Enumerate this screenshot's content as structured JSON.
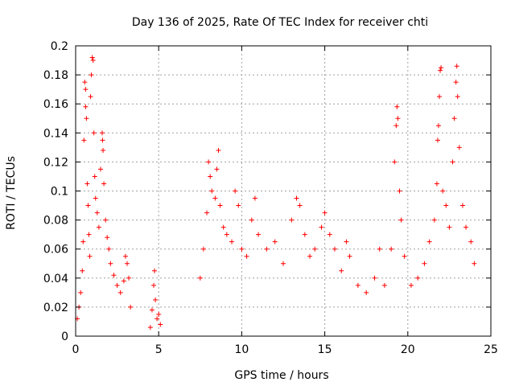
{
  "chart_data": {
    "type": "scatter",
    "title": "Day 136 of 2025, Rate Of TEC Index for receiver chti",
    "xlabel": "GPS time / hours",
    "ylabel": "ROTI / TECUs",
    "xlim": [
      0,
      25
    ],
    "ylim": [
      0,
      0.2
    ],
    "x_ticks": [
      "0",
      "5",
      "10",
      "15",
      "20",
      "25"
    ],
    "y_ticks": [
      "0",
      "0.02",
      "0.04",
      "0.06",
      "0.08",
      "0.1",
      "0.12",
      "0.14",
      "0.16",
      "0.18",
      "0.2"
    ],
    "grid": true,
    "marker": "+",
    "color": "#ff0000",
    "series": [
      {
        "points": [
          [
            0.1,
            0.012
          ],
          [
            0.2,
            0.02
          ],
          [
            0.3,
            0.03
          ],
          [
            0.4,
            0.045
          ],
          [
            0.45,
            0.065
          ],
          [
            0.5,
            0.135
          ],
          [
            0.55,
            0.175
          ],
          [
            0.6,
            0.17
          ],
          [
            0.6,
            0.158
          ],
          [
            0.65,
            0.15
          ],
          [
            0.7,
            0.105
          ],
          [
            0.75,
            0.09
          ],
          [
            0.8,
            0.07
          ],
          [
            0.85,
            0.055
          ],
          [
            0.9,
            0.165
          ],
          [
            0.95,
            0.18
          ],
          [
            1.0,
            0.192
          ],
          [
            1.05,
            0.19
          ],
          [
            1.1,
            0.14
          ],
          [
            1.15,
            0.11
          ],
          [
            1.2,
            0.095
          ],
          [
            1.3,
            0.085
          ],
          [
            1.4,
            0.075
          ],
          [
            1.5,
            0.115
          ],
          [
            1.6,
            0.14
          ],
          [
            1.62,
            0.135
          ],
          [
            1.65,
            0.128
          ],
          [
            1.7,
            0.105
          ],
          [
            1.8,
            0.08
          ],
          [
            1.9,
            0.068
          ],
          [
            2.0,
            0.06
          ],
          [
            2.1,
            0.05
          ],
          [
            2.3,
            0.042
          ],
          [
            2.5,
            0.035
          ],
          [
            2.7,
            0.03
          ],
          [
            2.9,
            0.038
          ],
          [
            3.0,
            0.055
          ],
          [
            3.1,
            0.05
          ],
          [
            3.2,
            0.04
          ],
          [
            3.3,
            0.02
          ],
          [
            4.5,
            0.006
          ],
          [
            4.6,
            0.018
          ],
          [
            4.7,
            0.035
          ],
          [
            4.75,
            0.045
          ],
          [
            4.8,
            0.025
          ],
          [
            4.9,
            0.012
          ],
          [
            5.0,
            0.015
          ],
          [
            5.1,
            0.008
          ],
          [
            7.5,
            0.04
          ],
          [
            7.7,
            0.06
          ],
          [
            7.9,
            0.085
          ],
          [
            8.0,
            0.12
          ],
          [
            8.1,
            0.11
          ],
          [
            8.2,
            0.1
          ],
          [
            8.4,
            0.095
          ],
          [
            8.5,
            0.115
          ],
          [
            8.6,
            0.128
          ],
          [
            8.7,
            0.09
          ],
          [
            8.9,
            0.075
          ],
          [
            9.1,
            0.07
          ],
          [
            9.4,
            0.065
          ],
          [
            9.6,
            0.1
          ],
          [
            9.8,
            0.09
          ],
          [
            10.0,
            0.06
          ],
          [
            10.3,
            0.055
          ],
          [
            10.6,
            0.08
          ],
          [
            10.8,
            0.095
          ],
          [
            11.0,
            0.07
          ],
          [
            11.5,
            0.06
          ],
          [
            12.0,
            0.065
          ],
          [
            12.5,
            0.05
          ],
          [
            13.0,
            0.08
          ],
          [
            13.3,
            0.095
          ],
          [
            13.5,
            0.09
          ],
          [
            13.8,
            0.07
          ],
          [
            14.1,
            0.055
          ],
          [
            14.4,
            0.06
          ],
          [
            14.8,
            0.075
          ],
          [
            15.0,
            0.085
          ],
          [
            15.3,
            0.07
          ],
          [
            15.6,
            0.06
          ],
          [
            16.0,
            0.045
          ],
          [
            16.3,
            0.065
          ],
          [
            16.5,
            0.055
          ],
          [
            17.0,
            0.035
          ],
          [
            17.5,
            0.03
          ],
          [
            18.0,
            0.04
          ],
          [
            18.3,
            0.06
          ],
          [
            18.6,
            0.035
          ],
          [
            19.0,
            0.06
          ],
          [
            19.2,
            0.12
          ],
          [
            19.3,
            0.145
          ],
          [
            19.35,
            0.158
          ],
          [
            19.4,
            0.15
          ],
          [
            19.5,
            0.1
          ],
          [
            19.6,
            0.08
          ],
          [
            19.8,
            0.055
          ],
          [
            20.2,
            0.035
          ],
          [
            20.6,
            0.04
          ],
          [
            21.0,
            0.05
          ],
          [
            21.3,
            0.065
          ],
          [
            21.6,
            0.08
          ],
          [
            21.75,
            0.105
          ],
          [
            21.8,
            0.135
          ],
          [
            21.85,
            0.145
          ],
          [
            21.9,
            0.165
          ],
          [
            21.95,
            0.183
          ],
          [
            22.0,
            0.185
          ],
          [
            22.1,
            0.1
          ],
          [
            22.3,
            0.09
          ],
          [
            22.5,
            0.075
          ],
          [
            22.7,
            0.12
          ],
          [
            22.8,
            0.15
          ],
          [
            22.9,
            0.175
          ],
          [
            22.95,
            0.186
          ],
          [
            23.0,
            0.165
          ],
          [
            23.1,
            0.13
          ],
          [
            23.3,
            0.09
          ],
          [
            23.5,
            0.075
          ],
          [
            23.8,
            0.065
          ],
          [
            24.0,
            0.05
          ]
        ]
      }
    ]
  }
}
